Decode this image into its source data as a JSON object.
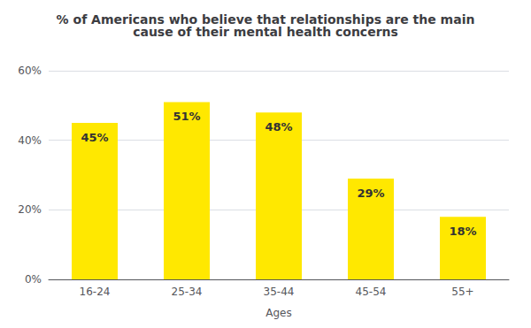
{
  "chart_data": {
    "type": "bar",
    "title": "% of Americans who believe that relationships are the main\ncause of their mental health concerns",
    "xlabel": "Ages",
    "categories": [
      "16-24",
      "25-34",
      "35-44",
      "45-54",
      "55+"
    ],
    "values": [
      45,
      51,
      48,
      29,
      18
    ],
    "value_labels": [
      "45%",
      "51%",
      "48%",
      "29%",
      "18%"
    ],
    "data_labels": true,
    "color": "#FFE800",
    "ylim": [
      0,
      60
    ],
    "yticks": [
      {
        "value": 0,
        "label": "0%"
      },
      {
        "value": 20,
        "label": "20%"
      },
      {
        "value": 40,
        "label": "40%"
      },
      {
        "value": 60,
        "label": "60%"
      }
    ],
    "grid": true
  }
}
